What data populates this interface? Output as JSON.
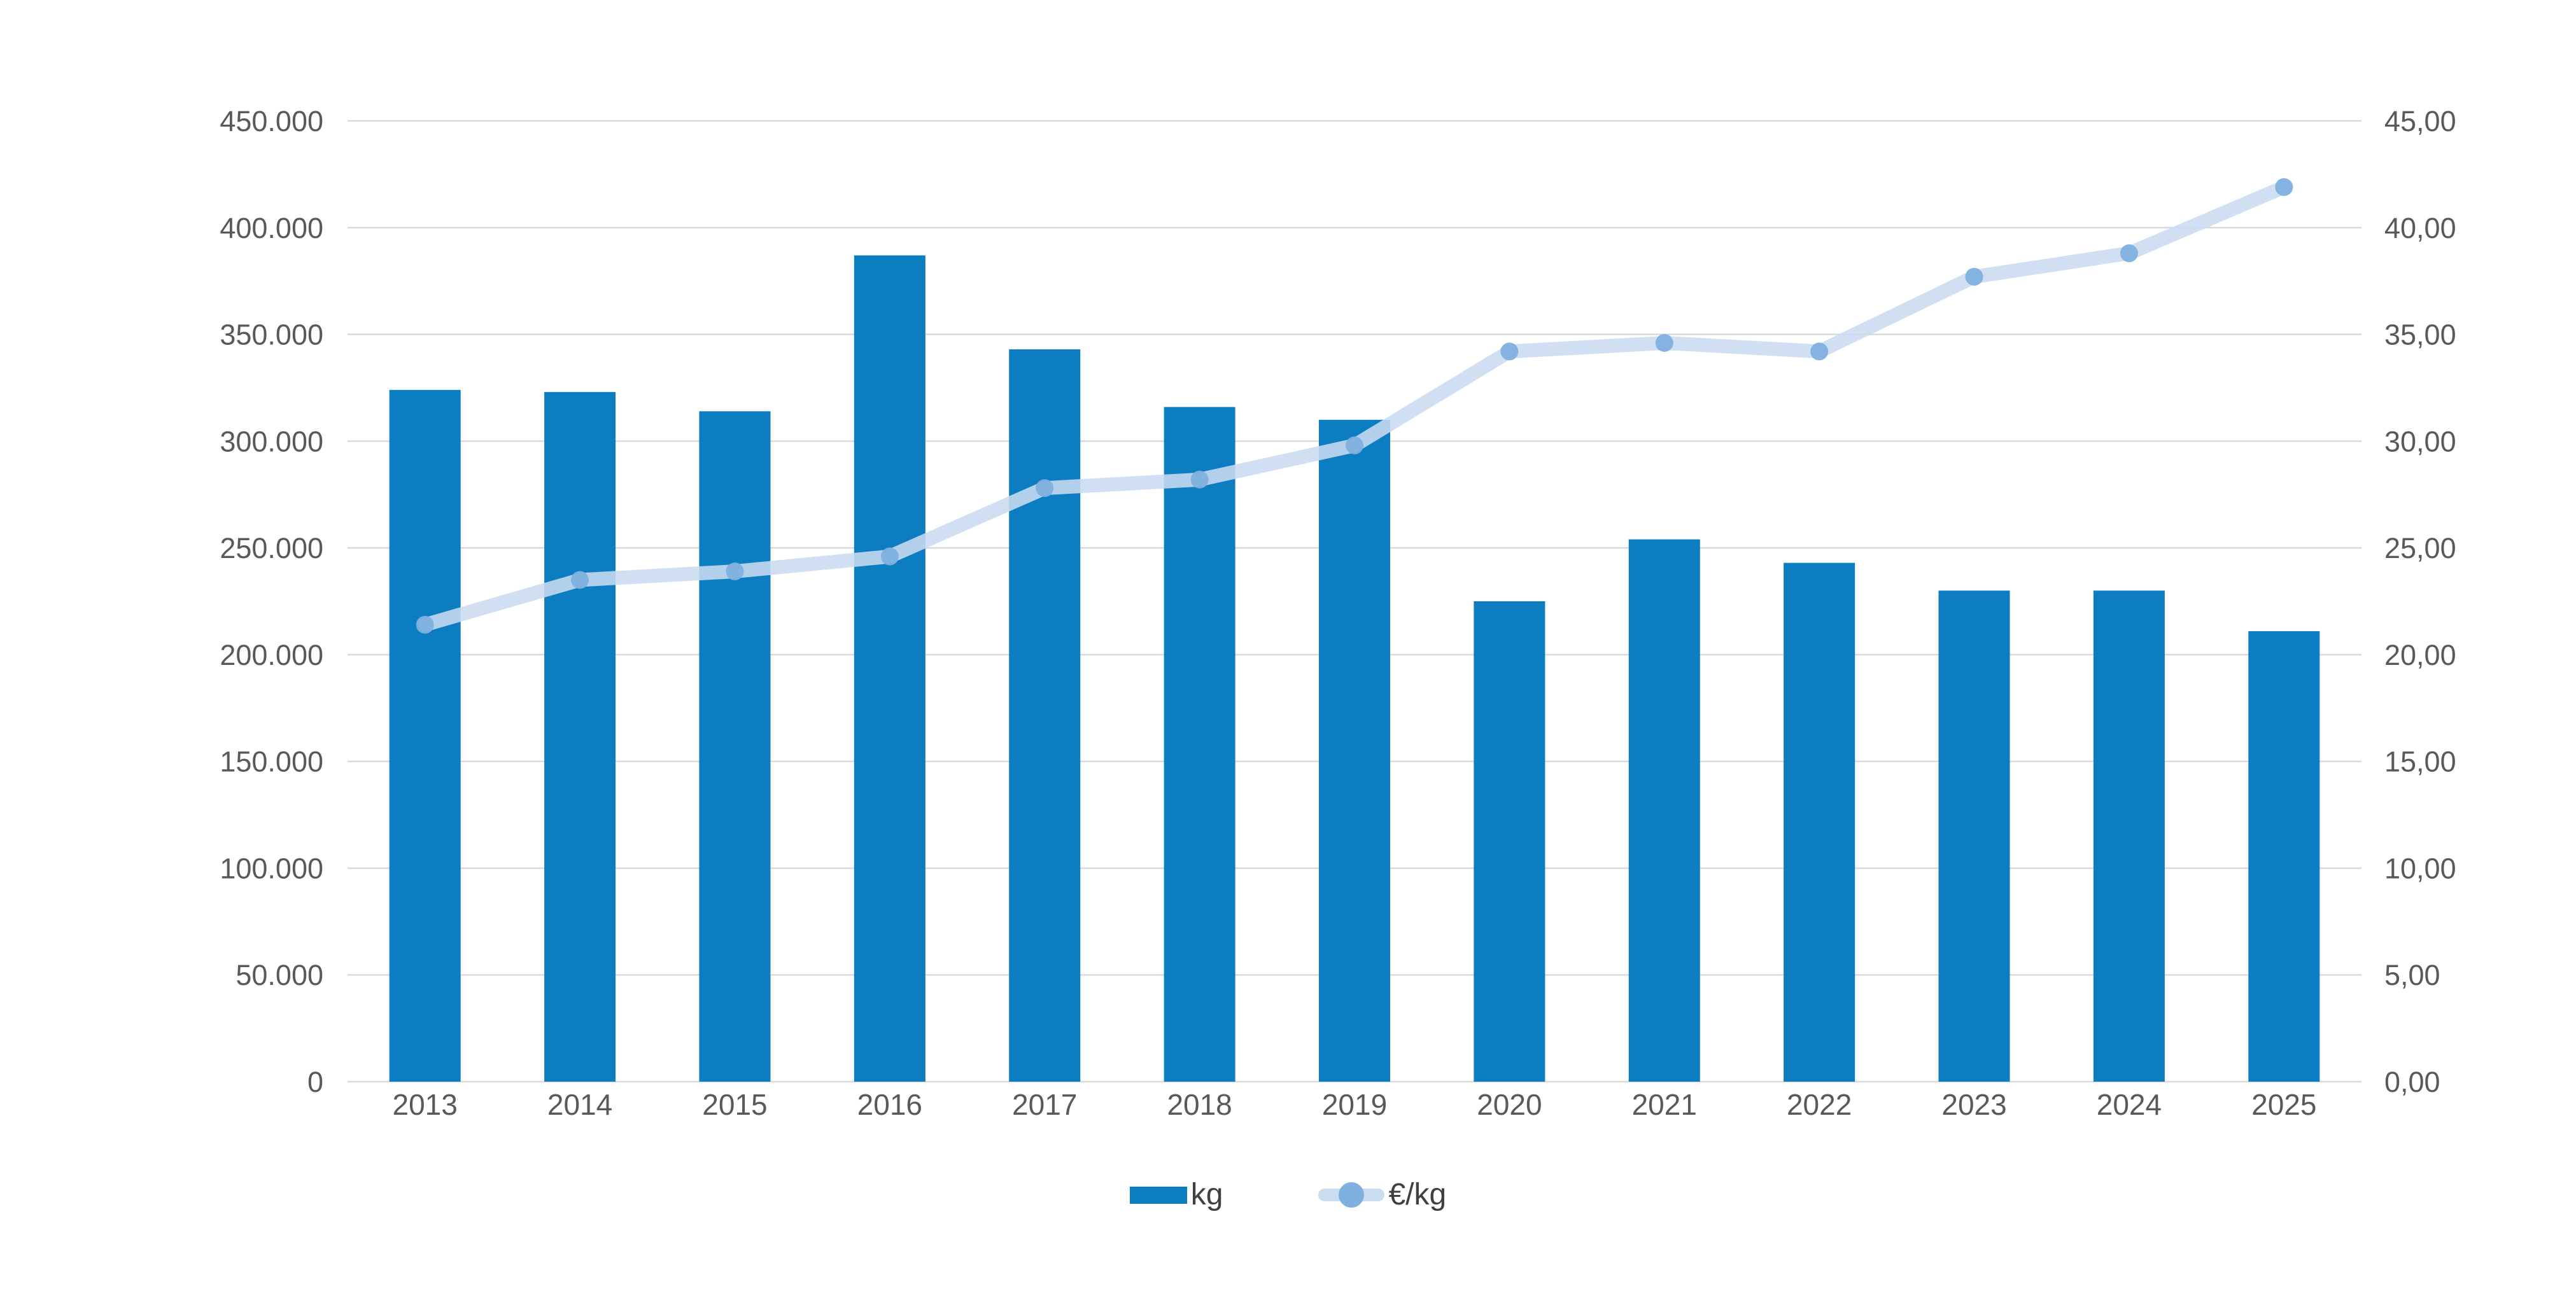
{
  "chart_data": {
    "type": "combo",
    "title": "",
    "categories": [
      "2013",
      "2014",
      "2015",
      "2016",
      "2017",
      "2018",
      "2019",
      "2020",
      "2021",
      "2022",
      "2023",
      "2024",
      "2025"
    ],
    "series": [
      {
        "name": "kg",
        "type": "bar",
        "axis": "left",
        "values": [
          324000,
          323000,
          314000,
          387000,
          343000,
          316000,
          310000,
          225000,
          254000,
          243000,
          230000,
          230000,
          211000
        ]
      },
      {
        "name": "€/kg",
        "type": "line",
        "axis": "right",
        "values": [
          21.4,
          23.5,
          23.9,
          24.6,
          27.8,
          28.2,
          29.8,
          34.2,
          34.6,
          34.2,
          37.7,
          38.8,
          41.9
        ]
      }
    ],
    "left_axis": {
      "min": 0,
      "max": 450000,
      "step": 50000,
      "tick_labels": [
        "0",
        "50.000",
        "100.000",
        "150.000",
        "200.000",
        "250.000",
        "300.000",
        "350.000",
        "400.000",
        "450.000"
      ]
    },
    "right_axis": {
      "min": 0,
      "max": 45,
      "step": 5,
      "tick_labels": [
        "0,00",
        "5,00",
        "10,00",
        "15,00",
        "20,00",
        "25,00",
        "30,00",
        "35,00",
        "40,00",
        "45,00"
      ]
    },
    "grid": true,
    "legend_position": "bottom"
  },
  "legend": {
    "kg_label": "kg",
    "eur_label": "€/kg"
  },
  "colors": {
    "bar": "#0d7dc2",
    "line": "#cadcf0",
    "marker": "#7fb0df",
    "gridline": "#d9d9d9",
    "tick_text": "#595959",
    "legend_text": "#404040",
    "background": "#ffffff"
  }
}
